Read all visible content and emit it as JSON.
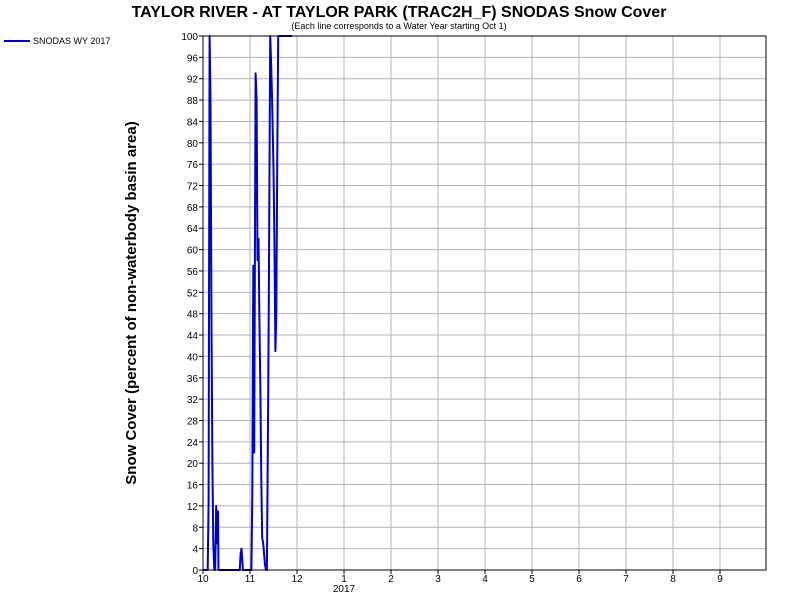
{
  "chart_data": {
    "type": "line",
    "title": "TAYLOR RIVER - AT TAYLOR PARK (TRAC2H_F) SNODAS Snow Cover",
    "subtitle": "(Each line corresponds to a Water Year starting Oct 1)",
    "ylabel": "Snow Cover (percent of non-waterbody basin area)",
    "xlabel": "",
    "ylim": [
      0,
      100
    ],
    "ytick_step": 4,
    "xlim": [
      0,
      12
    ],
    "x_ticks": [
      {
        "x": 0,
        "label": "10"
      },
      {
        "x": 1,
        "label": "11"
      },
      {
        "x": 2,
        "label": "12"
      },
      {
        "x": 3,
        "label": "1"
      },
      {
        "x": 4,
        "label": "2"
      },
      {
        "x": 5,
        "label": "3"
      },
      {
        "x": 6,
        "label": "4"
      },
      {
        "x": 7,
        "label": "5"
      },
      {
        "x": 8,
        "label": "6"
      },
      {
        "x": 9,
        "label": "7"
      },
      {
        "x": 10,
        "label": "8"
      },
      {
        "x": 11,
        "label": "9"
      }
    ],
    "x_year_label": "2017",
    "x_year_at": 3,
    "grid": true,
    "legend_position": "top-left",
    "series": [
      {
        "name": "SNODAS WY 2017",
        "color": "#0000cc",
        "x": [
          0.0,
          0.1,
          0.12,
          0.14,
          0.16,
          0.18,
          0.2,
          0.22,
          0.24,
          0.26,
          0.28,
          0.3,
          0.32,
          0.33,
          0.35,
          0.37,
          0.38,
          0.4,
          0.45,
          0.55,
          0.65,
          0.75,
          0.78,
          0.8,
          0.82,
          0.85,
          0.9,
          0.95,
          1.0,
          1.03,
          1.05,
          1.07,
          1.09,
          1.1,
          1.12,
          1.14,
          1.16,
          1.18,
          1.2,
          1.22,
          1.24,
          1.26,
          1.28,
          1.3,
          1.32,
          1.34,
          1.36,
          1.38,
          1.4,
          1.43,
          1.45,
          1.47,
          1.5,
          1.52,
          1.54,
          1.56,
          1.58,
          1.6,
          1.62,
          1.64,
          1.66,
          1.67,
          1.68,
          1.69,
          1.7,
          1.72,
          1.74,
          1.76,
          1.78,
          1.8,
          1.82,
          1.84,
          1.86,
          1.88,
          1.9
        ],
        "y": [
          0,
          0,
          13,
          100,
          88,
          45,
          20,
          5,
          0,
          0,
          12,
          5,
          11,
          0,
          0,
          0,
          0,
          0,
          0,
          0,
          0,
          0,
          0,
          3,
          4,
          0,
          0,
          0,
          0,
          0,
          14,
          57,
          22,
          48,
          93,
          88,
          58,
          62,
          47,
          35,
          17,
          6,
          5,
          3,
          1,
          0,
          0,
          25,
          50,
          100,
          95,
          88,
          75,
          62,
          41,
          48,
          78,
          100,
          100,
          100,
          100,
          100,
          100,
          100,
          100,
          100,
          100,
          100,
          100,
          100,
          100,
          100,
          100,
          100,
          100
        ]
      }
    ]
  }
}
